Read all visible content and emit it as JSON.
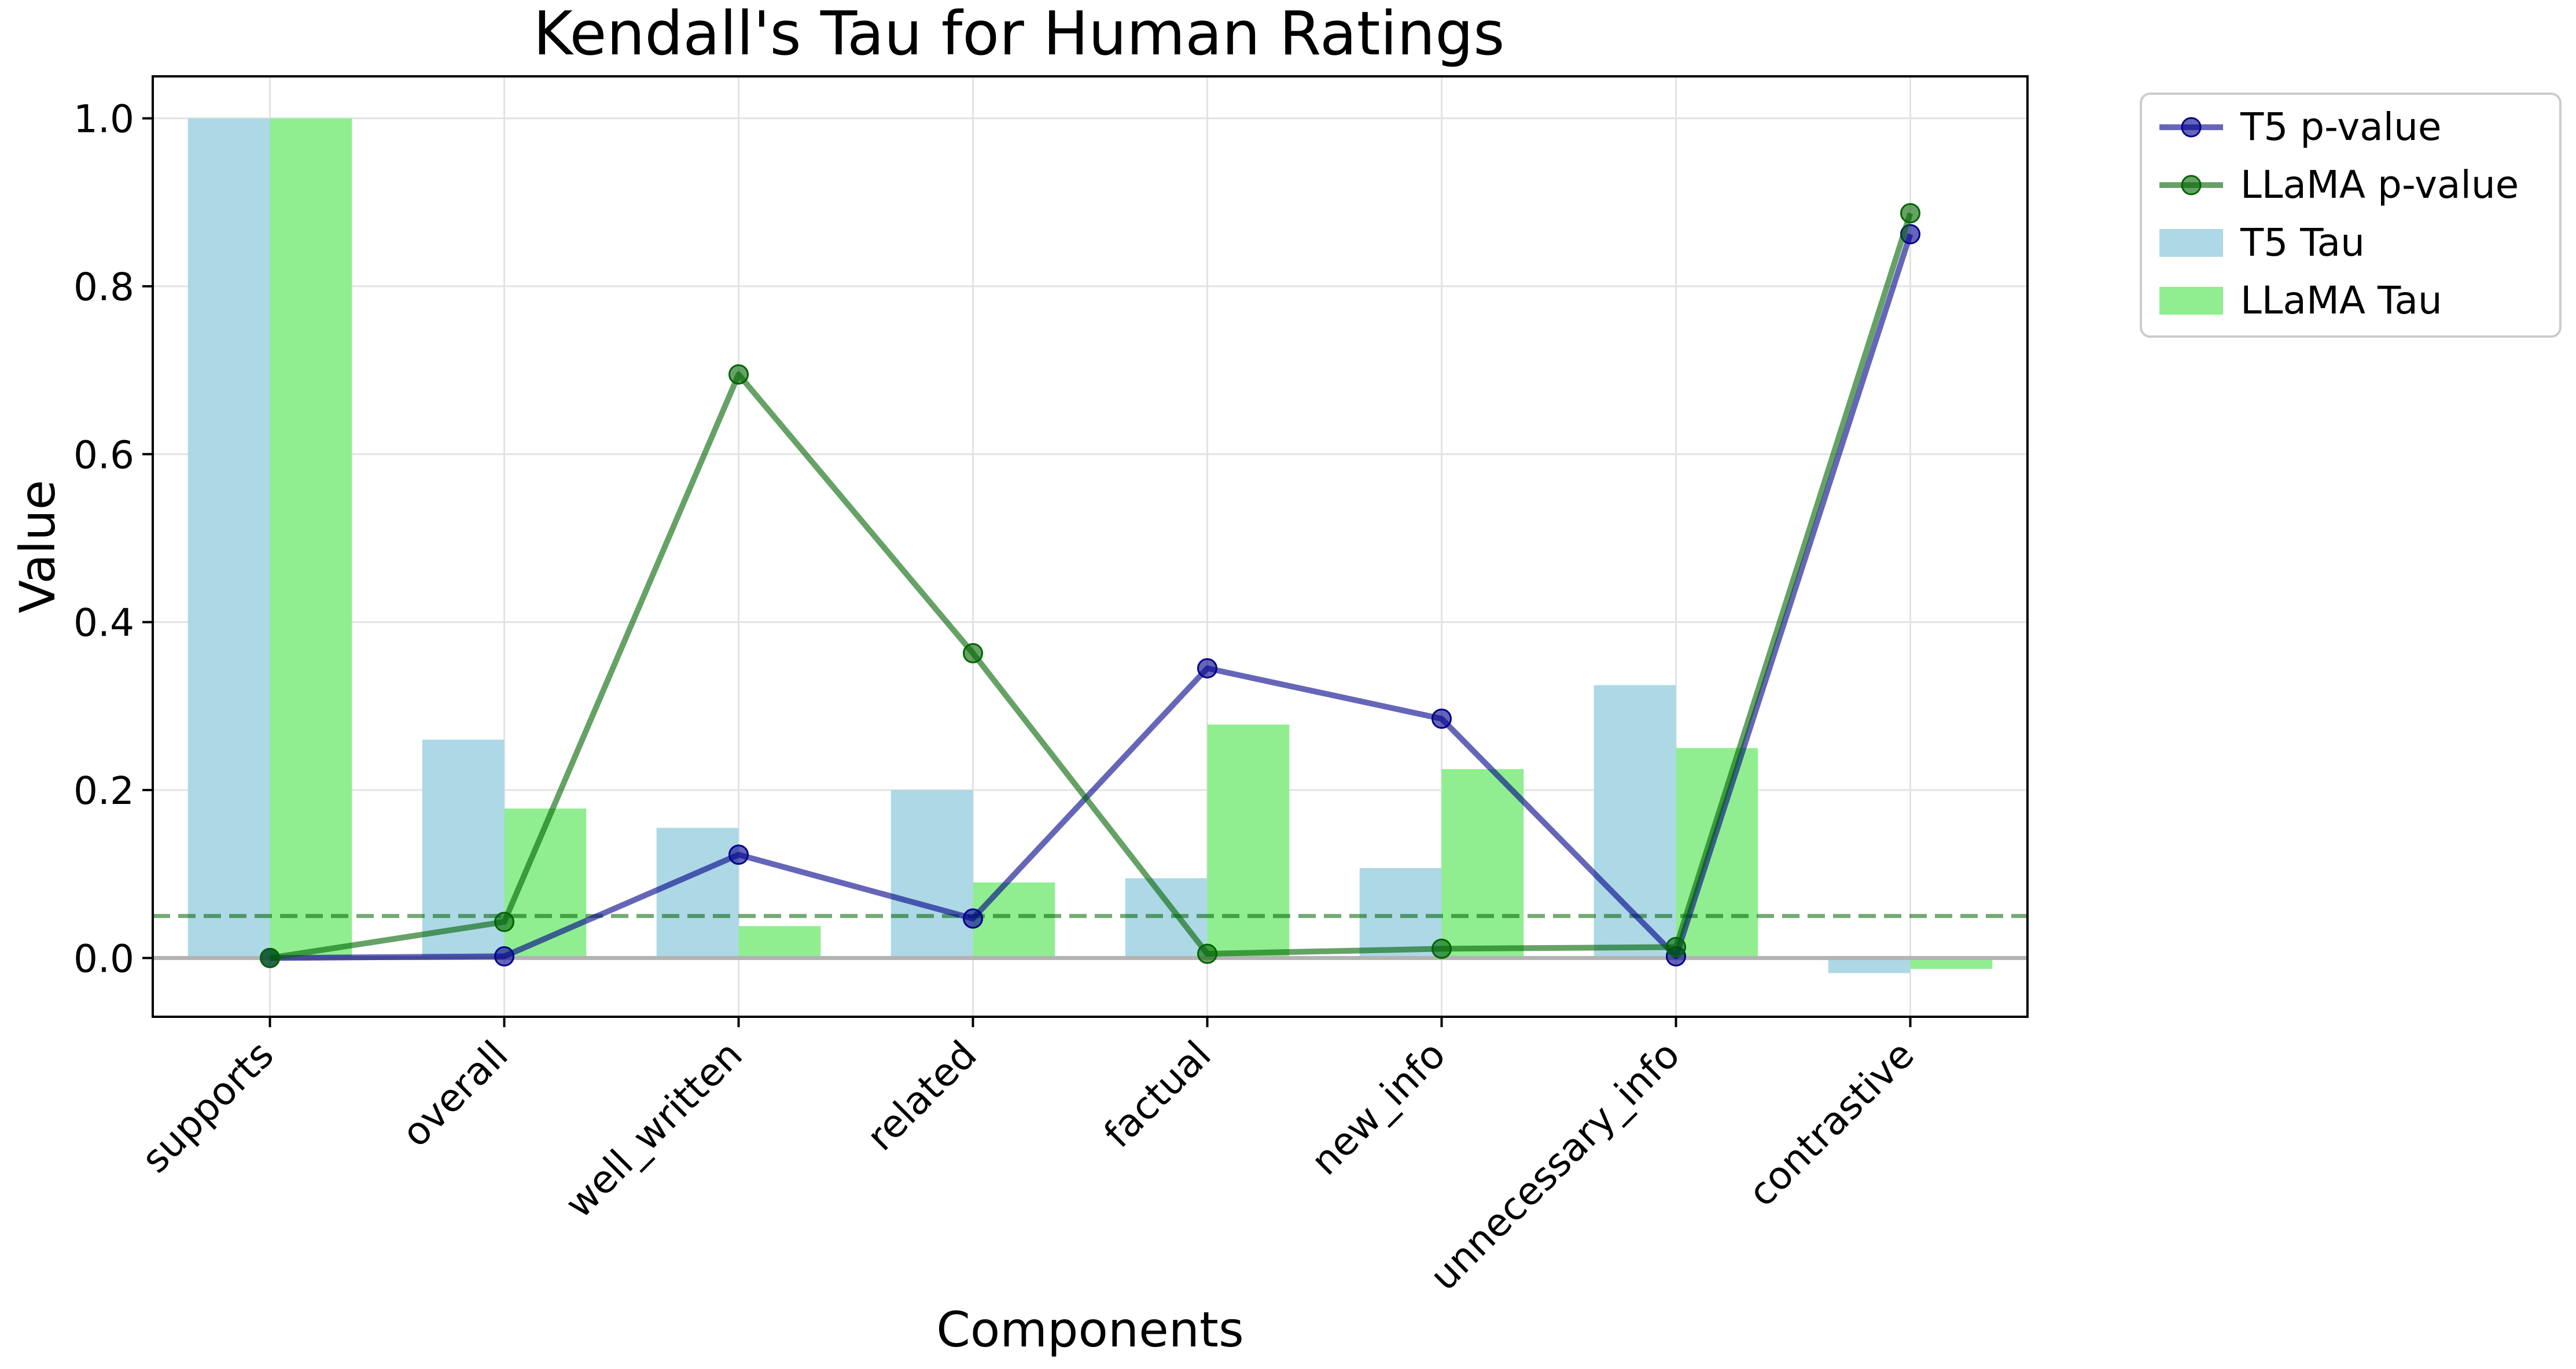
{
  "chart_data": {
    "type": "bar",
    "title": "Kendall's Tau for Human Ratings",
    "xlabel": "Components",
    "ylabel": "Value",
    "categories": [
      "supports",
      "overall",
      "well_written",
      "related",
      "factual",
      "new_info",
      "unnecessary_info",
      "contrastive"
    ],
    "ylim": [
      -0.07,
      1.05
    ],
    "yticks": [
      0.0,
      0.2,
      0.4,
      0.6,
      0.8,
      1.0
    ],
    "ytick_labels": [
      "0.0",
      "0.2",
      "0.4",
      "0.6",
      "0.8",
      "1.0"
    ],
    "grid": true,
    "legend_position": "outside-top-right",
    "significance_line": 0.05,
    "baseline": 0.0,
    "bar_series": [
      {
        "name": "T5 Tau",
        "color": "#add8e6",
        "values": [
          1.0,
          0.26,
          0.155,
          0.2,
          0.095,
          0.107,
          0.325,
          -0.018
        ]
      },
      {
        "name": "LLaMA Tau",
        "color": "#90ee90",
        "values": [
          1.0,
          0.178,
          0.038,
          0.09,
          0.278,
          0.225,
          0.25,
          -0.013
        ]
      }
    ],
    "line_series": [
      {
        "name": "T5 p-value",
        "color": "#00008b",
        "values": [
          0.0,
          0.002,
          0.123,
          0.047,
          0.345,
          0.285,
          0.002,
          0.862
        ]
      },
      {
        "name": "LLaMA p-value",
        "color": "#006400",
        "values": [
          0.0,
          0.043,
          0.695,
          0.363,
          0.005,
          0.011,
          0.013,
          0.887
        ]
      }
    ],
    "legend_order": [
      "T5 p-value",
      "LLaMA p-value",
      "T5 Tau",
      "LLaMA Tau"
    ]
  }
}
